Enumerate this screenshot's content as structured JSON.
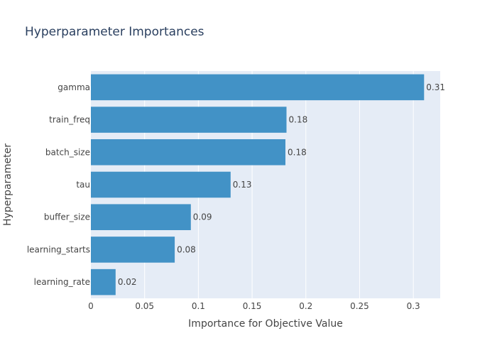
{
  "chart_data": {
    "type": "bar",
    "orientation": "horizontal",
    "title": "Hyperparameter Importances",
    "xlabel": "Importance for Objective Value",
    "ylabel": "Hyperparameter",
    "categories": [
      "gamma",
      "train_freq",
      "batch_size",
      "tau",
      "buffer_size",
      "learning_starts",
      "learning_rate"
    ],
    "values": [
      0.31,
      0.182,
      0.181,
      0.13,
      0.093,
      0.078,
      0.023
    ],
    "value_labels": [
      "0.31",
      "0.18",
      "0.18",
      "0.13",
      "0.09",
      "0.08",
      "0.02"
    ],
    "xlim": [
      0,
      0.325
    ],
    "xticks": [
      0,
      0.05,
      0.1,
      0.15,
      0.2,
      0.25,
      0.3
    ],
    "xtick_labels": [
      "0",
      "0.05",
      "0.1",
      "0.15",
      "0.2",
      "0.25",
      "0.3"
    ],
    "grid": true,
    "legend": "none",
    "colors": {
      "bar": "#4292c6",
      "plot_background": "#e5ecf6",
      "grid": "#ffffff",
      "text": "#444444",
      "title": "#2a3f5f"
    }
  }
}
